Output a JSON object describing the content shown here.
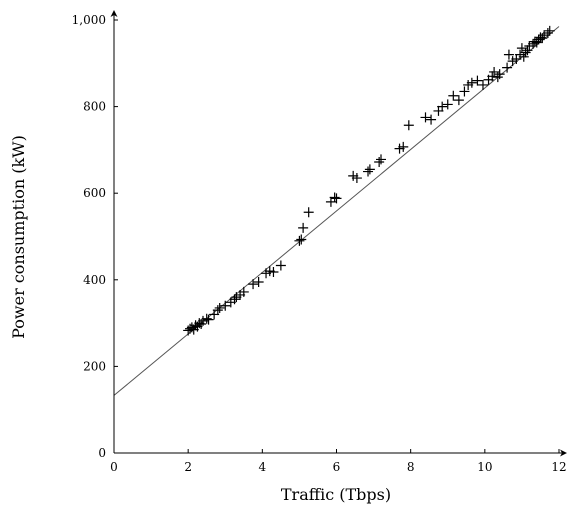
{
  "chart_data": {
    "type": "scatter",
    "title": "",
    "xlabel": "Traffic (Tbps)",
    "ylabel": "Power consumption (kW)",
    "xlim": [
      0,
      12
    ],
    "ylim": [
      0,
      1000
    ],
    "x_ticks": [
      0,
      2,
      4,
      6,
      8,
      10,
      12
    ],
    "x_tick_labels": [
      "0",
      "2",
      "4",
      "6",
      "8",
      "10",
      "12"
    ],
    "y_ticks": [
      0,
      200,
      400,
      600,
      800,
      1000
    ],
    "y_tick_labels": [
      "0",
      "200",
      "400",
      "600",
      "800",
      "1,000"
    ],
    "grid": false,
    "marker": "plus",
    "colors": {
      "points": "#000000",
      "fit_line": "#555555",
      "axes": "#000000"
    },
    "fit_line": {
      "x": [
        0,
        12
      ],
      "y": [
        133,
        985
      ]
    },
    "points": {
      "x": [
        2.0,
        2.05,
        2.1,
        2.15,
        2.2,
        2.25,
        2.3,
        2.35,
        2.4,
        2.5,
        2.55,
        2.7,
        2.8,
        2.85,
        3.0,
        3.15,
        3.25,
        3.3,
        3.4,
        3.5,
        3.75,
        3.9,
        4.1,
        4.2,
        4.3,
        4.5,
        5.0,
        5.05,
        5.1,
        5.25,
        5.85,
        5.95,
        6.0,
        6.45,
        6.55,
        6.85,
        6.9,
        7.15,
        7.2,
        7.7,
        7.8,
        7.95,
        8.4,
        8.55,
        8.75,
        8.85,
        9.0,
        9.15,
        9.3,
        9.45,
        9.55,
        9.65,
        9.8,
        9.95,
        10.1,
        10.2,
        10.25,
        10.35,
        10.4,
        10.6,
        10.65,
        10.75,
        10.85,
        10.95,
        11.0,
        11.05,
        11.1,
        11.15,
        11.2,
        11.3,
        11.35,
        11.4,
        11.45,
        11.5,
        11.55,
        11.6,
        11.7,
        11.75
      ],
      "y": [
        283,
        287,
        290,
        285,
        295,
        292,
        300,
        298,
        305,
        310,
        308,
        320,
        330,
        335,
        340,
        348,
        355,
        360,
        365,
        372,
        390,
        395,
        415,
        420,
        418,
        433,
        490,
        493,
        520,
        556,
        580,
        590,
        588,
        640,
        635,
        650,
        655,
        672,
        678,
        703,
        707,
        757,
        775,
        770,
        790,
        800,
        805,
        825,
        815,
        835,
        850,
        855,
        860,
        850,
        862,
        870,
        880,
        868,
        875,
        890,
        920,
        905,
        910,
        920,
        935,
        915,
        925,
        930,
        940,
        945,
        950,
        948,
        955,
        960,
        958,
        965,
        970,
        975
      ]
    }
  }
}
